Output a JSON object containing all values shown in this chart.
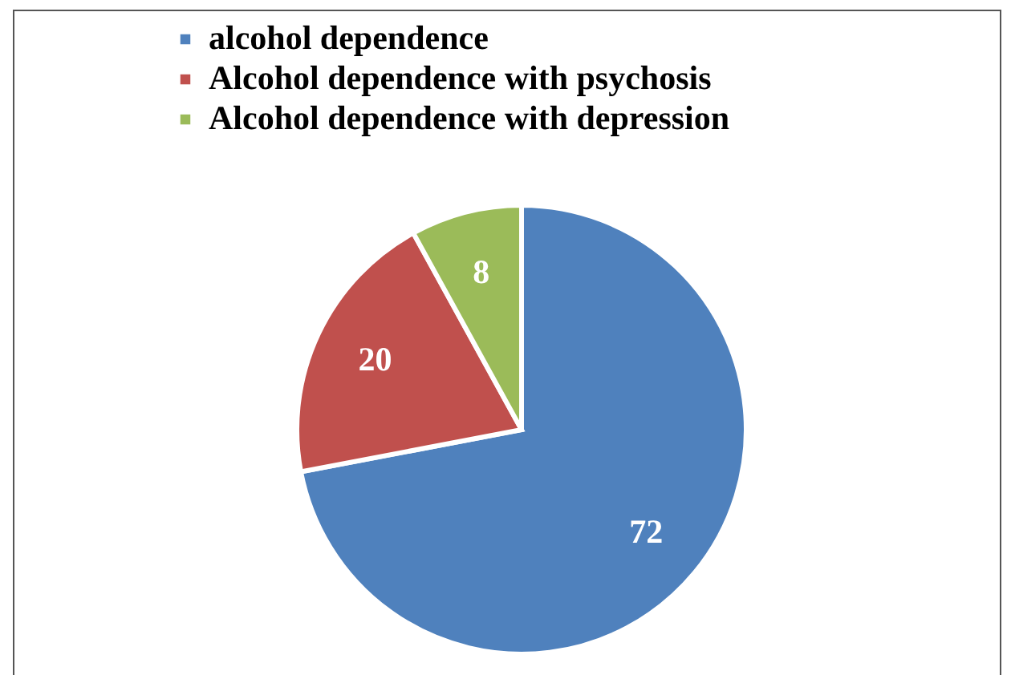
{
  "chart_data": {
    "type": "pie",
    "categories": [
      "alcohol dependence",
      "Alcohol dependence with psychosis",
      "Alcohol dependence with depression"
    ],
    "values": [
      72,
      20,
      8
    ],
    "colors": [
      "#4f81bd",
      "#c0504d",
      "#9bbb59"
    ],
    "data_labels": true,
    "legend": "top"
  }
}
